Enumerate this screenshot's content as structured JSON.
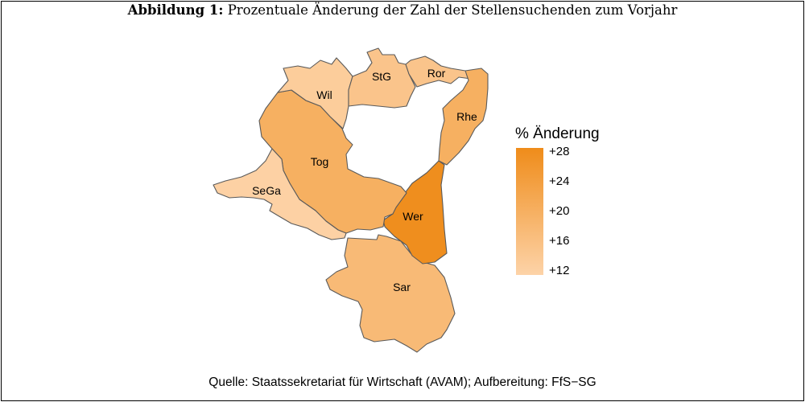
{
  "caption": {
    "label": "Abbildung 1:",
    "text": "Prozentuale Änderung der Zahl der Stellensuchenden zum Vorjahr"
  },
  "source": "Quelle: Staatssekretariat für Wirtschaft (AVAM); Aufbereitung: FfS−SG",
  "legend": {
    "title": "% Änderung",
    "min": 11.5,
    "max": 28.5,
    "color_low": "#FDD3A8",
    "color_high": "#EF8C1A",
    "ticks": [
      {
        "value": 28,
        "label": "+28"
      },
      {
        "value": 24,
        "label": "+24"
      },
      {
        "value": 20,
        "label": "+20"
      },
      {
        "value": 16,
        "label": "+16"
      },
      {
        "value": 12,
        "label": "+12"
      }
    ]
  },
  "regions": [
    {
      "id": "wil",
      "label": "Wil",
      "value": 13
    },
    {
      "id": "stg",
      "label": "StG",
      "value": 15
    },
    {
      "id": "ror",
      "label": "Ror",
      "value": 15
    },
    {
      "id": "rhe",
      "label": "Rhe",
      "value": 20
    },
    {
      "id": "tog",
      "label": "Tog",
      "value": 20
    },
    {
      "id": "sega",
      "label": "SeGa",
      "value": 12
    },
    {
      "id": "wer",
      "label": "Wer",
      "value": 28
    },
    {
      "id": "sar",
      "label": "Sar",
      "value": 17.5
    }
  ]
}
